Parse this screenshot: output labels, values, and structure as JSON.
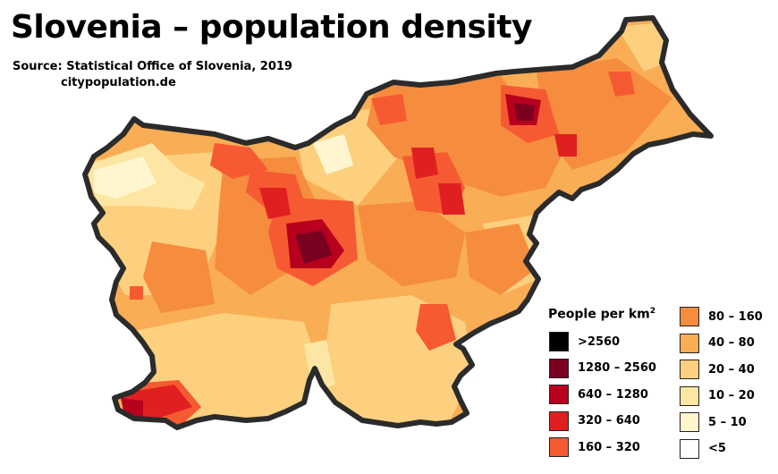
{
  "map": {
    "title": "Slovenia – population density",
    "source_line1": "Source: Statistical Office of Slovenia, 2019",
    "source_line2": "citypopulation.de"
  },
  "legend": {
    "title": "People per km",
    "title_sup": "2",
    "items": [
      {
        "label": ">2560",
        "color": "#000000"
      },
      {
        "label": "1280 – 2560",
        "color": "#7a0020"
      },
      {
        "label": "640 – 1280",
        "color": "#b8001e"
      },
      {
        "label": "320 – 640",
        "color": "#e02020"
      },
      {
        "label": "160 – 320",
        "color": "#f65a32"
      },
      {
        "label": "80 – 160",
        "color": "#f68c3e"
      },
      {
        "label": "40 – 80",
        "color": "#f9ad55"
      },
      {
        "label": "20 – 40",
        "color": "#fcd07e"
      },
      {
        "label": "10 – 20",
        "color": "#fde6a3"
      },
      {
        "label": "5 – 10",
        "color": "#fff6cf"
      },
      {
        "label": "<5",
        "color": "#ffffff"
      }
    ]
  }
}
